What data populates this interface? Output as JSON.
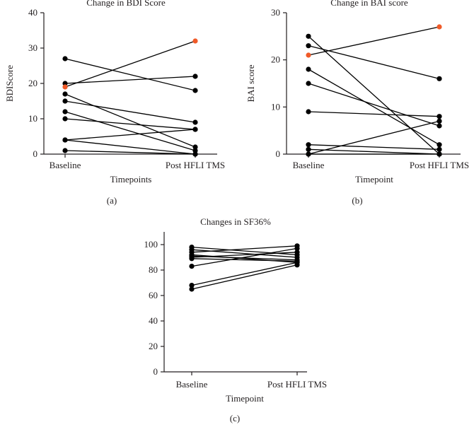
{
  "colors": {
    "default": "#000000",
    "highlight": "#f05a28",
    "axis": "#231f20"
  },
  "chart_data": [
    {
      "id": "a",
      "type": "line",
      "panel_label": "(a)",
      "title": "Change in BDI Score",
      "xlabel": "Timepoints",
      "ylabel": "BDIScore",
      "categories": [
        "Baseline",
        "Post HFLI TMS"
      ],
      "ylim": [
        0,
        40
      ],
      "yticks": [
        0,
        10,
        20,
        30,
        40
      ],
      "series": [
        {
          "values": [
            27,
            18
          ]
        },
        {
          "values": [
            20,
            22
          ]
        },
        {
          "values": [
            17,
            2
          ]
        },
        {
          "values": [
            15,
            9
          ]
        },
        {
          "values": [
            12,
            1
          ]
        },
        {
          "values": [
            10,
            7
          ]
        },
        {
          "values": [
            4,
            7
          ]
        },
        {
          "values": [
            4,
            0
          ]
        },
        {
          "values": [
            1,
            0
          ]
        },
        {
          "values": [
            19,
            32
          ],
          "highlight": true
        }
      ]
    },
    {
      "id": "b",
      "type": "line",
      "panel_label": "(b)",
      "title": "Change in BAI score",
      "xlabel": "Timepoint",
      "ylabel": "BAI score",
      "categories": [
        "Baseline",
        "Post HFLI TMS"
      ],
      "ylim": [
        0,
        30
      ],
      "yticks": [
        0,
        10,
        20,
        30
      ],
      "series": [
        {
          "values": [
            25,
            0
          ]
        },
        {
          "values": [
            23,
            16
          ]
        },
        {
          "values": [
            18,
            2
          ]
        },
        {
          "values": [
            15,
            6
          ]
        },
        {
          "values": [
            9,
            8
          ]
        },
        {
          "values": [
            2,
            1
          ]
        },
        {
          "values": [
            1,
            0
          ]
        },
        {
          "values": [
            0,
            7
          ]
        },
        {
          "values": [
            0,
            0
          ]
        },
        {
          "values": [
            21,
            27
          ],
          "highlight": true
        }
      ]
    },
    {
      "id": "c",
      "type": "line",
      "panel_label": "(c)",
      "title": "Changes in SF36%",
      "xlabel": "Timepoint",
      "ylabel": "",
      "categories": [
        "Baseline",
        "Post HFLI TMS"
      ],
      "ylim": [
        0,
        110
      ],
      "yticks": [
        0,
        20,
        40,
        60,
        80,
        100
      ],
      "series": [
        {
          "values": [
            98,
            92
          ]
        },
        {
          "values": [
            96,
            90
          ]
        },
        {
          "values": [
            94,
            99
          ]
        },
        {
          "values": [
            92,
            86
          ]
        },
        {
          "values": [
            91,
            88
          ]
        },
        {
          "values": [
            90,
            94
          ]
        },
        {
          "values": [
            89,
            87
          ]
        },
        {
          "values": [
            83,
            97
          ]
        },
        {
          "values": [
            68,
            86
          ]
        },
        {
          "values": [
            65,
            84
          ]
        }
      ]
    }
  ]
}
